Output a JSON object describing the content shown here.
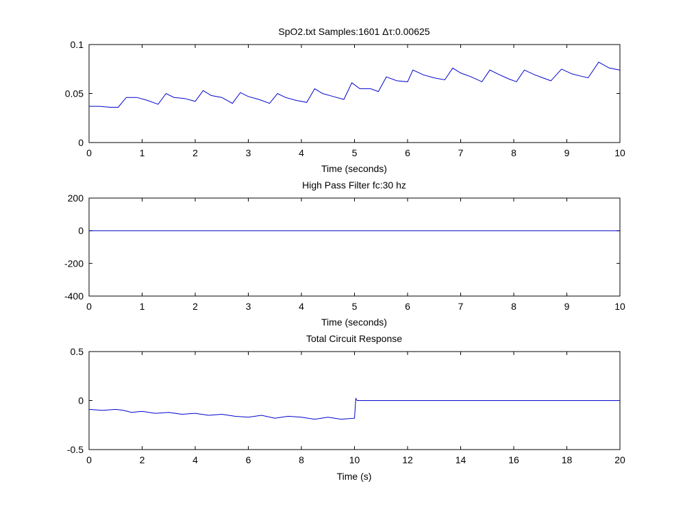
{
  "chart_data": [
    {
      "type": "line",
      "title": "SpO2.txt Samples:1601 Δτ:0.00625",
      "xlabel": "Time (seconds)",
      "ylabel": "",
      "xlim": [
        0,
        10
      ],
      "ylim": [
        0,
        0.1
      ],
      "xticks": [
        "0",
        "1",
        "2",
        "3",
        "4",
        "5",
        "6",
        "7",
        "8",
        "9",
        "10"
      ],
      "yticks": [
        "0",
        "0.05",
        "0.1"
      ],
      "grid": false,
      "series": [
        {
          "color": "#0000cc",
          "x": [
            0,
            0.2,
            0.4,
            0.55,
            0.7,
            0.9,
            1.1,
            1.3,
            1.45,
            1.6,
            1.8,
            2.0,
            2.15,
            2.3,
            2.5,
            2.7,
            2.85,
            3.0,
            3.2,
            3.4,
            3.55,
            3.7,
            3.9,
            4.1,
            4.25,
            4.4,
            4.6,
            4.8,
            4.95,
            5.1,
            5.3,
            5.45,
            5.6,
            5.8,
            6.0,
            6.1,
            6.3,
            6.5,
            6.7,
            6.85,
            7.0,
            7.2,
            7.4,
            7.55,
            7.7,
            7.9,
            8.05,
            8.2,
            8.4,
            8.55,
            8.7,
            8.9,
            9.1,
            9.25,
            9.4,
            9.6,
            9.8,
            10
          ],
          "y": [
            0.037,
            0.037,
            0.036,
            0.036,
            0.046,
            0.046,
            0.043,
            0.039,
            0.05,
            0.046,
            0.045,
            0.042,
            0.053,
            0.048,
            0.046,
            0.04,
            0.051,
            0.047,
            0.044,
            0.04,
            0.05,
            0.046,
            0.043,
            0.041,
            0.055,
            0.05,
            0.047,
            0.044,
            0.061,
            0.055,
            0.055,
            0.052,
            0.067,
            0.063,
            0.062,
            0.074,
            0.069,
            0.066,
            0.064,
            0.076,
            0.071,
            0.067,
            0.062,
            0.074,
            0.07,
            0.065,
            0.062,
            0.074,
            0.069,
            0.066,
            0.063,
            0.075,
            0.07,
            0.068,
            0.066,
            0.082,
            0.076,
            0.074
          ]
        }
      ]
    },
    {
      "type": "line",
      "title": "High Pass Filter fc:30 hz",
      "xlabel": "Time (seconds)",
      "ylabel": "",
      "xlim": [
        0,
        10
      ],
      "ylim": [
        -400,
        200
      ],
      "xticks": [
        "0",
        "1",
        "2",
        "3",
        "4",
        "5",
        "6",
        "7",
        "8",
        "9",
        "10"
      ],
      "yticks": [
        "-400",
        "-200",
        "0",
        "200"
      ],
      "grid": false,
      "series": [
        {
          "color": "#0000cc",
          "x": [
            0,
            10
          ],
          "y": [
            0,
            0
          ]
        }
      ]
    },
    {
      "type": "line",
      "title": "Total Circuit Response",
      "xlabel": "Time (s)",
      "ylabel": "",
      "xlim": [
        0,
        20
      ],
      "ylim": [
        -0.5,
        0.5
      ],
      "xticks": [
        "0",
        "2",
        "4",
        "6",
        "8",
        "10",
        "12",
        "14",
        "16",
        "18",
        "20"
      ],
      "yticks": [
        "-0.5",
        "0",
        "0.5"
      ],
      "grid": false,
      "series": [
        {
          "color": "#0000cc",
          "x": [
            0,
            0.5,
            1.0,
            1.3,
            1.6,
            2.0,
            2.5,
            3.0,
            3.5,
            4.0,
            4.5,
            5.0,
            5.5,
            6.0,
            6.5,
            7.0,
            7.5,
            8.0,
            8.5,
            9.0,
            9.5,
            10.0,
            10.05,
            10.1,
            12,
            14,
            16,
            18,
            20
          ],
          "y": [
            -0.09,
            -0.1,
            -0.09,
            -0.1,
            -0.12,
            -0.11,
            -0.13,
            -0.12,
            -0.14,
            -0.13,
            -0.15,
            -0.14,
            -0.16,
            -0.17,
            -0.15,
            -0.18,
            -0.16,
            -0.17,
            -0.19,
            -0.17,
            -0.19,
            -0.18,
            0.02,
            0.0,
            0.0,
            0.0,
            0.0,
            0.0,
            0.0
          ]
        }
      ]
    }
  ]
}
